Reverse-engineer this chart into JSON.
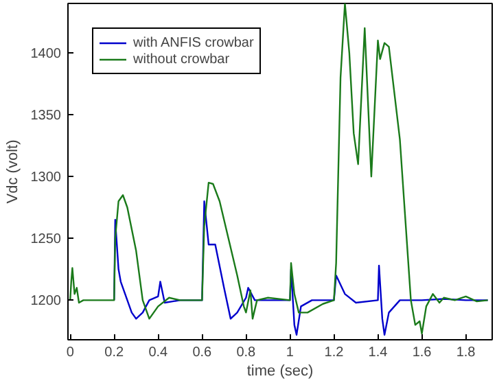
{
  "chart_data": {
    "type": "line",
    "xlabel": "time (sec)",
    "ylabel": "Vdc (volt)",
    "xlim": [
      -0.01,
      1.92
    ],
    "ylim": [
      1168,
      1440
    ],
    "xticks": [
      0,
      0.2,
      0.4,
      0.6,
      0.8,
      1,
      1.2,
      1.4,
      1.6,
      1.8
    ],
    "yticks": [
      1200,
      1250,
      1300,
      1350,
      1400
    ],
    "grid": false,
    "legend": "top left",
    "series": [
      {
        "name": "with ANFIS crowbar",
        "color": "#0000cc",
        "x": [
          0.2,
          0.205,
          0.22,
          0.23,
          0.25,
          0.28,
          0.3,
          0.33,
          0.36,
          0.4,
          0.41,
          0.43,
          0.5,
          0.6,
          0.61,
          0.63,
          0.66,
          0.7,
          0.73,
          0.76,
          0.8,
          0.81,
          0.84,
          1.0,
          1.005,
          1.02,
          1.03,
          1.05,
          1.1,
          1.2,
          1.21,
          1.25,
          1.3,
          1.4,
          1.405,
          1.42,
          1.43,
          1.45,
          1.5,
          1.6,
          1.7,
          1.8,
          1.9
        ],
        "values": [
          1200,
          1265,
          1225,
          1215,
          1205,
          1190,
          1185,
          1190,
          1200,
          1203,
          1215,
          1198,
          1200,
          1200,
          1280,
          1245,
          1245,
          1210,
          1185,
          1190,
          1202,
          1210,
          1200,
          1200,
          1225,
          1180,
          1172,
          1195,
          1200,
          1200,
          1220,
          1205,
          1198,
          1200,
          1228,
          1185,
          1172,
          1190,
          1200,
          1200,
          1201,
          1200,
          1200
        ]
      },
      {
        "name": "without crowbar",
        "color": "#1a7a1a",
        "x": [
          0,
          0.005,
          0.01,
          0.02,
          0.03,
          0.04,
          0.06,
          0.2,
          0.205,
          0.22,
          0.24,
          0.26,
          0.3,
          0.33,
          0.36,
          0.4,
          0.45,
          0.5,
          0.6,
          0.61,
          0.63,
          0.65,
          0.68,
          0.72,
          0.76,
          0.79,
          0.8,
          0.82,
          0.83,
          0.85,
          0.9,
          1.0,
          1.005,
          1.02,
          1.04,
          1.08,
          1.15,
          1.2,
          1.21,
          1.23,
          1.25,
          1.27,
          1.29,
          1.31,
          1.34,
          1.37,
          1.4,
          1.41,
          1.43,
          1.45,
          1.5,
          1.55,
          1.57,
          1.59,
          1.6,
          1.62,
          1.65,
          1.68,
          1.7,
          1.75,
          1.8,
          1.85,
          1.9
        ],
        "values": [
          1200,
          1215,
          1226,
          1205,
          1210,
          1198,
          1200,
          1200,
          1250,
          1280,
          1285,
          1275,
          1240,
          1200,
          1185,
          1195,
          1202,
          1200,
          1200,
          1260,
          1295,
          1294,
          1280,
          1250,
          1220,
          1195,
          1190,
          1208,
          1185,
          1200,
          1202,
          1200,
          1230,
          1205,
          1190,
          1190,
          1197,
          1200,
          1230,
          1380,
          1440,
          1400,
          1335,
          1310,
          1420,
          1300,
          1410,
          1395,
          1408,
          1405,
          1330,
          1200,
          1180,
          1183,
          1173,
          1195,
          1205,
          1198,
          1202,
          1200,
          1203,
          1199,
          1200
        ]
      }
    ]
  }
}
